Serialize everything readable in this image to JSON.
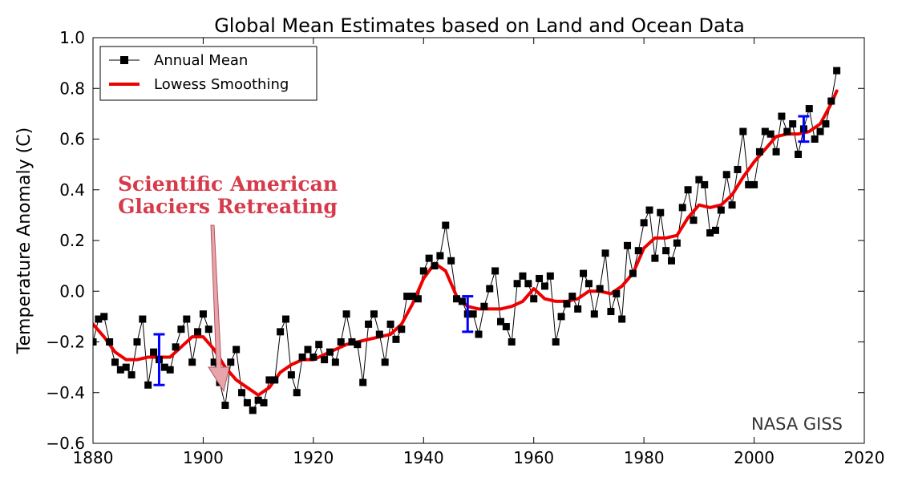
{
  "chart_data": {
    "type": "line",
    "title": "Global Mean Estimates based on Land and Ocean Data",
    "xlabel": "",
    "ylabel": "Temperature Anomaly (C)",
    "xlim": [
      1880,
      2020
    ],
    "ylim": [
      -0.6,
      1.0
    ],
    "x_ticks": [
      "1880",
      "1900",
      "1920",
      "1940",
      "1960",
      "1980",
      "2000",
      "2020"
    ],
    "y_ticks": [
      "−0.6",
      "−0.4",
      "−0.2",
      "0.0",
      "0.2",
      "0.4",
      "0.6",
      "0.8",
      "1.0"
    ],
    "legend_position": "top-left",
    "grid": false,
    "series": [
      {
        "name": "Annual Mean",
        "style": "line-with-square-markers",
        "color": "#000000",
        "x": [
          1880,
          1881,
          1882,
          1883,
          1884,
          1885,
          1886,
          1887,
          1888,
          1889,
          1890,
          1891,
          1892,
          1893,
          1894,
          1895,
          1896,
          1897,
          1898,
          1899,
          1900,
          1901,
          1902,
          1903,
          1904,
          1905,
          1906,
          1907,
          1908,
          1909,
          1910,
          1911,
          1912,
          1913,
          1914,
          1915,
          1916,
          1917,
          1918,
          1919,
          1920,
          1921,
          1922,
          1923,
          1924,
          1925,
          1926,
          1927,
          1928,
          1929,
          1930,
          1931,
          1932,
          1933,
          1934,
          1935,
          1936,
          1937,
          1938,
          1939,
          1940,
          1941,
          1942,
          1943,
          1944,
          1945,
          1946,
          1947,
          1948,
          1949,
          1950,
          1951,
          1952,
          1953,
          1954,
          1955,
          1956,
          1957,
          1958,
          1959,
          1960,
          1961,
          1962,
          1963,
          1964,
          1965,
          1966,
          1967,
          1968,
          1969,
          1970,
          1971,
          1972,
          1973,
          1974,
          1975,
          1976,
          1977,
          1978,
          1979,
          1980,
          1981,
          1982,
          1983,
          1984,
          1985,
          1986,
          1987,
          1988,
          1989,
          1990,
          1991,
          1992,
          1993,
          1994,
          1995,
          1996,
          1997,
          1998,
          1999,
          2000,
          2001,
          2002,
          2003,
          2004,
          2005,
          2006,
          2007,
          2008,
          2009,
          2010,
          2011,
          2012,
          2013,
          2014,
          2015
        ],
        "values": [
          -0.2,
          -0.11,
          -0.1,
          -0.2,
          -0.28,
          -0.31,
          -0.3,
          -0.33,
          -0.2,
          -0.11,
          -0.37,
          -0.24,
          -0.27,
          -0.3,
          -0.31,
          -0.22,
          -0.15,
          -0.11,
          -0.28,
          -0.16,
          -0.09,
          -0.15,
          -0.28,
          -0.36,
          -0.45,
          -0.28,
          -0.23,
          -0.4,
          -0.44,
          -0.47,
          -0.43,
          -0.44,
          -0.35,
          -0.35,
          -0.16,
          -0.11,
          -0.33,
          -0.4,
          -0.26,
          -0.23,
          -0.26,
          -0.21,
          -0.27,
          -0.24,
          -0.28,
          -0.2,
          -0.09,
          -0.2,
          -0.21,
          -0.36,
          -0.13,
          -0.09,
          -0.17,
          -0.28,
          -0.13,
          -0.19,
          -0.15,
          -0.02,
          -0.02,
          -0.03,
          0.08,
          0.13,
          0.1,
          0.14,
          0.26,
          0.12,
          -0.03,
          -0.04,
          -0.09,
          -0.09,
          -0.17,
          -0.06,
          0.01,
          0.08,
          -0.12,
          -0.14,
          -0.2,
          0.03,
          0.06,
          0.03,
          -0.03,
          0.05,
          0.02,
          0.06,
          -0.2,
          -0.1,
          -0.05,
          -0.02,
          -0.07,
          0.07,
          0.03,
          -0.09,
          0.01,
          0.15,
          -0.08,
          -0.01,
          -0.11,
          0.18,
          0.07,
          0.16,
          0.27,
          0.32,
          0.13,
          0.31,
          0.16,
          0.12,
          0.19,
          0.33,
          0.4,
          0.28,
          0.44,
          0.42,
          0.23,
          0.24,
          0.32,
          0.46,
          0.34,
          0.48,
          0.63,
          0.42,
          0.42,
          0.55,
          0.63,
          0.62,
          0.55,
          0.69,
          0.63,
          0.66,
          0.54,
          0.64,
          0.72,
          0.6,
          0.63,
          0.66,
          0.75,
          0.87
        ]
      },
      {
        "name": "Lowess Smoothing",
        "style": "line",
        "color": "#ee0000",
        "x": [
          1880,
          1882,
          1884,
          1886,
          1888,
          1890,
          1892,
          1894,
          1896,
          1898,
          1900,
          1902,
          1904,
          1906,
          1908,
          1910,
          1912,
          1914,
          1916,
          1918,
          1920,
          1922,
          1924,
          1926,
          1928,
          1930,
          1932,
          1934,
          1936,
          1938,
          1940,
          1942,
          1944,
          1946,
          1948,
          1950,
          1952,
          1954,
          1956,
          1958,
          1960,
          1962,
          1964,
          1966,
          1968,
          1970,
          1972,
          1974,
          1976,
          1978,
          1980,
          1982,
          1984,
          1986,
          1988,
          1990,
          1992,
          1994,
          1996,
          1998,
          2000,
          2002,
          2004,
          2006,
          2008,
          2010,
          2012,
          2014,
          2015
        ],
        "values": [
          -0.13,
          -0.18,
          -0.24,
          -0.27,
          -0.27,
          -0.26,
          -0.26,
          -0.26,
          -0.22,
          -0.18,
          -0.18,
          -0.23,
          -0.3,
          -0.35,
          -0.38,
          -0.41,
          -0.38,
          -0.32,
          -0.29,
          -0.27,
          -0.27,
          -0.25,
          -0.23,
          -0.21,
          -0.2,
          -0.19,
          -0.18,
          -0.17,
          -0.13,
          -0.05,
          0.05,
          0.11,
          0.08,
          -0.02,
          -0.06,
          -0.07,
          -0.07,
          -0.07,
          -0.06,
          -0.04,
          0.01,
          -0.03,
          -0.04,
          -0.04,
          -0.03,
          0.0,
          0.0,
          -0.01,
          0.02,
          0.07,
          0.17,
          0.21,
          0.21,
          0.22,
          0.29,
          0.34,
          0.33,
          0.34,
          0.38,
          0.45,
          0.51,
          0.56,
          0.61,
          0.62,
          0.62,
          0.63,
          0.66,
          0.74,
          0.79
        ]
      }
    ],
    "error_bars": [
      {
        "x": 1892,
        "low": -0.37,
        "high": -0.17,
        "color": "#0000ff"
      },
      {
        "x": 1948,
        "low": -0.16,
        "high": -0.02,
        "color": "#0000ff"
      },
      {
        "x": 2009,
        "low": 0.59,
        "high": 0.69,
        "color": "#0000ff"
      }
    ],
    "annotations": [
      {
        "line1": "Scientific American",
        "line2": "Glaciers Retreating",
        "color": "#d73a4a",
        "points_to_x": 1904
      }
    ],
    "credit": "NASA GISS"
  }
}
